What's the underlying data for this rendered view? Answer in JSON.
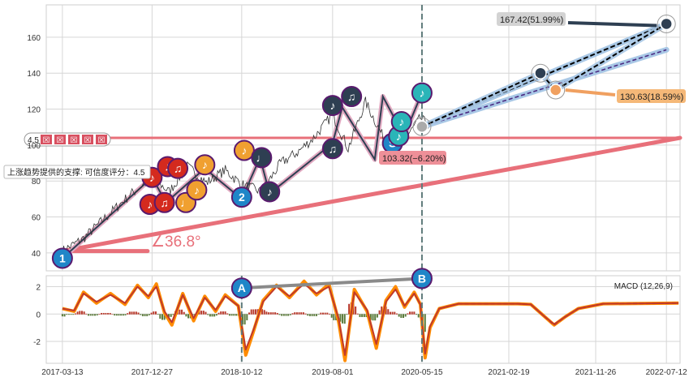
{
  "chart_data": [
    {
      "type": "line",
      "panel": "price",
      "ylim": [
        30,
        178
      ],
      "yticks": [
        40,
        60,
        80,
        100,
        120,
        140,
        160
      ],
      "xlim": [
        "2017-01-20",
        "2022-08-25"
      ],
      "xtick_labels": [
        "2017-03-13",
        "2017-12-27",
        "2018-10-12",
        "2019-08-01",
        "2020-05-15",
        "2021-02-19",
        "2021-11-26",
        "2022-07-12"
      ],
      "grid": true,
      "colors": {
        "support": "#e8707a",
        "zigzag_dark": "#2e3f52",
        "zigzag_pink": "#e0a8c0",
        "forecast_band": "#a9c8e6",
        "forecast_black": "#000000",
        "forecast_purple": "#4a2a82",
        "current_line": "#5f7a7a",
        "price_line": "#333333"
      },
      "series": [
        {
          "points": [
            [
              "2017-03-13",
              41
            ],
            [
              "2017-05-20",
              48
            ],
            [
              "2017-08-01",
              60
            ],
            [
              "2017-10-15",
              72
            ],
            [
              "2017-12-27",
              82
            ],
            [
              "2018-02-20",
              74
            ],
            [
              "2018-04-20",
              88
            ],
            [
              "2018-06-20",
              79
            ],
            [
              "2018-08-20",
              86
            ],
            [
              "2018-10-12",
              78
            ],
            [
              "2018-12-15",
              74
            ],
            [
              "2019-02-15",
              90
            ],
            [
              "2019-04-10",
              96
            ],
            [
              "2019-06-01",
              104
            ],
            [
              "2019-08-01",
              117
            ],
            [
              "2019-09-20",
              98
            ],
            [
              "2019-11-15",
              124
            ],
            [
              "2020-01-15",
              103
            ],
            [
              "2020-03-20",
              103
            ],
            [
              "2020-05-10",
              115
            ],
            [
              "2020-06-10",
              110
            ]
          ]
        }
      ],
      "zigzag_points": [
        [
          "2017-03-13",
          37
        ],
        [
          "2017-12-27",
          82
        ],
        [
          "2018-02-10",
          68
        ],
        [
          "2018-06-15",
          87
        ],
        [
          "2018-10-12",
          70
        ],
        [
          "2018-12-10",
          93
        ],
        [
          "2019-01-10",
          73
        ],
        [
          "2019-08-01",
          101
        ],
        [
          "2019-09-01",
          121
        ],
        [
          "2019-12-15",
          92
        ],
        [
          "2020-01-10",
          127
        ],
        [
          "2020-03-18",
          105
        ],
        [
          "2020-05-15",
          129
        ]
      ],
      "support_line": {
        "from": [
          "2017-03-13",
          41
        ],
        "to": [
          "2022-08-25",
          104
        ]
      },
      "horizontal_line": 104,
      "current_date": "2020-05-15",
      "forecast": {
        "start": [
          "2020-05-15",
          110.2
        ],
        "upper_end": [
          "2022-07-12",
          167.42
        ],
        "lower_end": [
          "2022-07-12",
          153
        ],
        "path": [
          [
            "2020-05-15",
            110.2
          ],
          [
            "2021-06-01",
            140
          ],
          [
            "2021-07-20",
            130.63
          ],
          [
            "2022-07-12",
            167.42
          ]
        ]
      },
      "markers": [
        {
          "date": "2017-03-13",
          "value": 37,
          "label": "1",
          "color": "#1f86c8"
        },
        {
          "date": "2017-12-27",
          "value": 82,
          "label": "♪",
          "color": "#d42a1e"
        },
        {
          "date": "2017-12-20",
          "value": 67,
          "label": "♪",
          "color": "#d42a1e"
        },
        {
          "date": "2018-02-05",
          "value": 68,
          "label": "♫",
          "color": "#d42a1e"
        },
        {
          "date": "2018-02-15",
          "value": 88,
          "label": "♪",
          "color": "#d42a1e"
        },
        {
          "date": "2018-03-20",
          "value": 87,
          "label": "♫",
          "color": "#d42a1e"
        },
        {
          "date": "2018-04-15",
          "value": 68,
          "label": "♩",
          "color": "#f0a030"
        },
        {
          "date": "2018-05-20",
          "value": 75,
          "label": "♪",
          "color": "#f0a030"
        },
        {
          "date": "2018-06-15",
          "value": 89,
          "label": "♪",
          "color": "#f0a030"
        },
        {
          "date": "2018-10-12",
          "value": 71,
          "label": "2",
          "color": "#1f86c8"
        },
        {
          "date": "2018-10-20",
          "value": 97,
          "label": "♪",
          "color": "#f0a030"
        },
        {
          "date": "2018-12-15",
          "value": 93,
          "label": "♩",
          "color": "#2e3f52"
        },
        {
          "date": "2019-01-10",
          "value": 74,
          "label": "♪",
          "color": "#2e3f52"
        },
        {
          "date": "2019-08-01",
          "value": 122,
          "label": "♪",
          "color": "#2e3f52"
        },
        {
          "date": "2019-08-01",
          "value": 98,
          "label": "♫",
          "color": "#2e3f52"
        },
        {
          "date": "2019-10-01",
          "value": 127,
          "label": "♫",
          "color": "#2e3f52"
        },
        {
          "date": "2020-02-10",
          "value": 101,
          "label": "S",
          "color": "#1f86c8"
        },
        {
          "date": "2020-03-01",
          "value": 105,
          "label": "♪",
          "color": "#2ab5b8"
        },
        {
          "date": "2020-03-10",
          "value": 113,
          "label": "♪",
          "color": "#2ab5b8"
        },
        {
          "date": "2020-05-15",
          "value": 129,
          "label": "♪",
          "color": "#2ab5b8"
        }
      ],
      "ring_markers": [
        {
          "date": "2020-05-15",
          "value": 110.2,
          "color": "#aaaaaa"
        },
        {
          "date": "2021-06-01",
          "value": 140,
          "color": "#2e3f52"
        },
        {
          "date": "2021-07-20",
          "value": 130.63,
          "color": "#f0a060"
        },
        {
          "date": "2022-07-12",
          "value": 167.42,
          "color": "#2e3f52"
        }
      ],
      "annotations": {
        "angle": "∠36.8°",
        "support_note": "上涨趋势提供的支撑: 可信度评分：4.5",
        "score_badge": "4.5",
        "score_icons": [
          "☒",
          "☒",
          "☒",
          "☒",
          "☒"
        ],
        "current_price": "103.32(−6.20%)",
        "target_high": "167.42(51.99%)",
        "target_mid": "130.63(18.59%)"
      }
    },
    {
      "type": "line",
      "panel": "macd",
      "title": "MACD (12,26,9)",
      "ylim": [
        -3.6,
        2.8
      ],
      "yticks": [
        -2,
        0,
        2
      ],
      "grid": true,
      "series": [
        {
          "color": "#ff8c00",
          "points": [
            [
              "2017-03-13",
              0.4
            ],
            [
              "2017-04-20",
              0.2
            ],
            [
              "2017-05-20",
              1.6
            ],
            [
              "2017-07-01",
              0.8
            ],
            [
              "2017-08-15",
              1.5
            ],
            [
              "2017-10-01",
              0.7
            ],
            [
              "2017-11-10",
              2.1
            ],
            [
              "2017-12-15",
              1.2
            ],
            [
              "2018-01-10",
              2.2
            ],
            [
              "2018-02-05",
              0.1
            ],
            [
              "2018-03-01",
              -0.8
            ],
            [
              "2018-04-05",
              1.5
            ],
            [
              "2018-05-10",
              -0.5
            ],
            [
              "2018-06-15",
              1.3
            ],
            [
              "2018-07-20",
              0.2
            ],
            [
              "2018-08-20",
              1.4
            ],
            [
              "2018-10-01",
              0.6
            ],
            [
              "2018-10-25",
              -3.0
            ],
            [
              "2018-11-20",
              -1.2
            ],
            [
              "2018-12-20",
              1.0
            ],
            [
              "2019-02-01",
              2.1
            ],
            [
              "2019-03-15",
              1.2
            ],
            [
              "2019-05-01",
              2.4
            ],
            [
              "2019-06-10",
              1.4
            ],
            [
              "2019-07-20",
              2.2
            ],
            [
              "2019-08-20",
              -0.5
            ],
            [
              "2019-09-10",
              -3.4
            ],
            [
              "2019-10-10",
              1.8
            ],
            [
              "2019-11-20",
              0.2
            ],
            [
              "2019-12-20",
              -2.5
            ],
            [
              "2020-01-20",
              1.0
            ],
            [
              "2020-02-20",
              2.0
            ],
            [
              "2020-03-20",
              0.5
            ],
            [
              "2020-04-20",
              1.6
            ],
            [
              "2020-05-10",
              0.7
            ],
            [
              "2020-05-25",
              -3.2
            ],
            [
              "2020-06-10",
              -1.0
            ],
            [
              "2020-07-10",
              0.4
            ],
            [
              "2020-09-10",
              0.75
            ],
            [
              "2021-03-20",
              0.75
            ],
            [
              "2021-05-01",
              0.7
            ],
            [
              "2021-06-15",
              -0.2
            ],
            [
              "2021-07-15",
              -0.8
            ],
            [
              "2021-08-20",
              -0.2
            ],
            [
              "2021-10-01",
              0.4
            ],
            [
              "2021-12-20",
              0.75
            ],
            [
              "2022-08-20",
              0.8
            ]
          ]
        },
        {
          "color": "#c0392b",
          "points": [
            [
              "2017-03-13",
              0.4
            ],
            [
              "2017-04-20",
              0.25
            ],
            [
              "2017-05-20",
              1.5
            ],
            [
              "2017-07-01",
              0.9
            ],
            [
              "2017-08-15",
              1.4
            ],
            [
              "2017-10-01",
              0.8
            ],
            [
              "2017-11-10",
              2.0
            ],
            [
              "2017-12-15",
              1.3
            ],
            [
              "2018-01-10",
              2.0
            ],
            [
              "2018-02-05",
              0.2
            ],
            [
              "2018-03-01",
              -0.6
            ],
            [
              "2018-04-05",
              1.4
            ],
            [
              "2018-05-10",
              -0.3
            ],
            [
              "2018-06-15",
              1.2
            ],
            [
              "2018-07-20",
              0.3
            ],
            [
              "2018-08-20",
              1.3
            ],
            [
              "2018-10-01",
              0.6
            ],
            [
              "2018-10-25",
              -2.6
            ],
            [
              "2018-11-20",
              -1.1
            ],
            [
              "2018-12-20",
              0.9
            ],
            [
              "2019-02-01",
              2.0
            ],
            [
              "2019-03-15",
              1.3
            ],
            [
              "2019-05-01",
              2.2
            ],
            [
              "2019-06-10",
              1.5
            ],
            [
              "2019-07-20",
              2.0
            ],
            [
              "2019-08-20",
              -0.3
            ],
            [
              "2019-09-10",
              -3.0
            ],
            [
              "2019-10-10",
              1.6
            ],
            [
              "2019-11-20",
              0.3
            ],
            [
              "2019-12-20",
              -2.2
            ],
            [
              "2020-01-20",
              0.9
            ],
            [
              "2020-02-20",
              1.8
            ],
            [
              "2020-03-20",
              0.6
            ],
            [
              "2020-04-20",
              1.5
            ],
            [
              "2020-05-10",
              0.7
            ],
            [
              "2020-05-25",
              -2.9
            ],
            [
              "2020-06-10",
              -0.9
            ],
            [
              "2020-07-10",
              0.4
            ],
            [
              "2020-09-10",
              0.75
            ],
            [
              "2021-03-20",
              0.75
            ],
            [
              "2021-05-01",
              0.7
            ],
            [
              "2021-06-15",
              -0.2
            ],
            [
              "2021-07-15",
              -0.75
            ],
            [
              "2021-08-20",
              -0.2
            ],
            [
              "2021-10-01",
              0.4
            ],
            [
              "2021-12-20",
              0.75
            ],
            [
              "2022-08-20",
              0.8
            ]
          ]
        }
      ],
      "divergence": {
        "from": [
          "2018-10-12",
          1.9
        ],
        "to": [
          "2020-05-15",
          2.6
        ]
      },
      "markers": [
        {
          "date": "2018-10-12",
          "value": 1.9,
          "label": "A",
          "color": "#1f86c8"
        },
        {
          "date": "2020-05-15",
          "value": 2.6,
          "label": "B",
          "color": "#1f86c8"
        }
      ],
      "vlines": [
        "2018-10-12",
        "2020-05-15"
      ]
    }
  ]
}
